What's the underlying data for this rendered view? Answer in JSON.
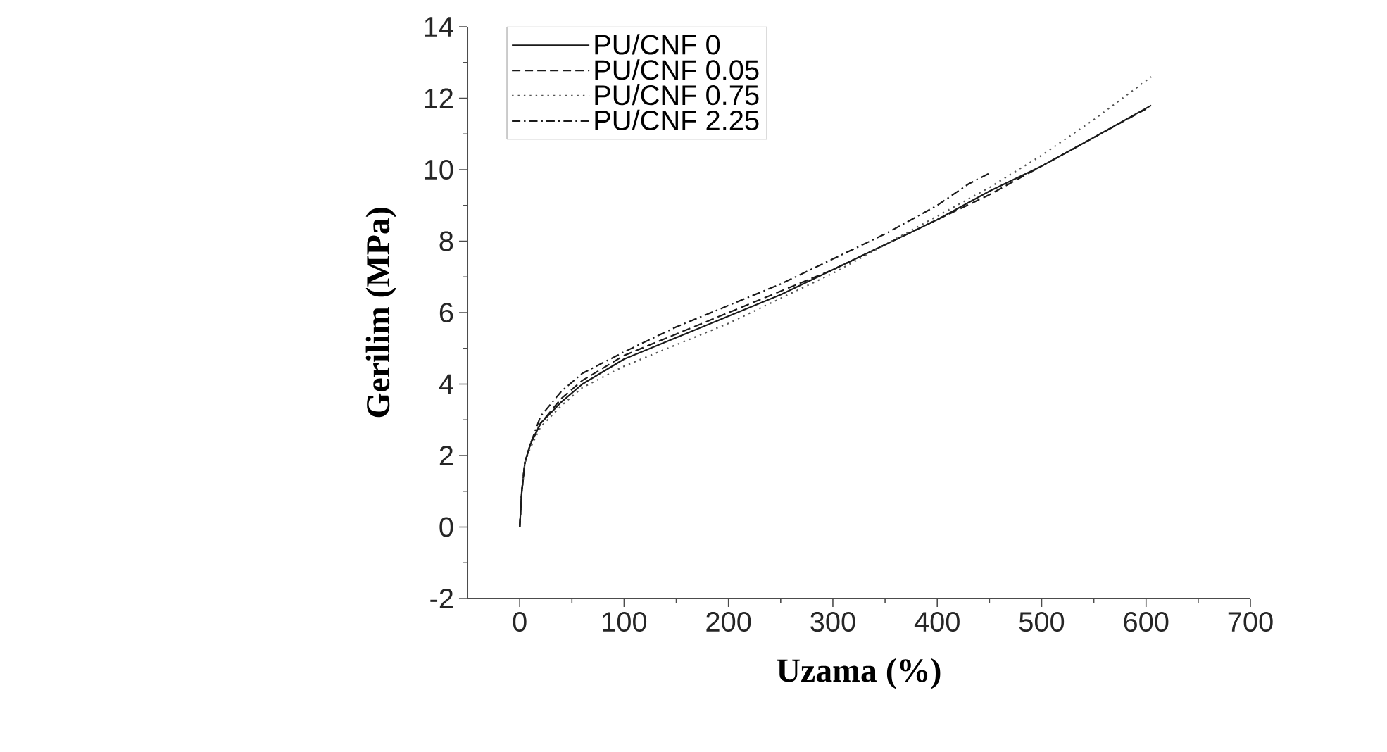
{
  "chart_data": {
    "type": "line",
    "xlabel": "Uzama (%)",
    "ylabel": "Gerilim (MPa)",
    "xlim": [
      -50,
      700
    ],
    "ylim": [
      -2,
      14
    ],
    "xticks": [
      0,
      100,
      200,
      300,
      400,
      500,
      600,
      700
    ],
    "yticks": [
      -2,
      0,
      2,
      4,
      6,
      8,
      10,
      12,
      14
    ],
    "legend": "top left",
    "series": [
      {
        "name": "PU/CNF 0",
        "color": "#1a1a1a",
        "line_style": "solid",
        "x": [
          0,
          2,
          5,
          10,
          20,
          40,
          60,
          100,
          150,
          200,
          250,
          300,
          350,
          400,
          450,
          500,
          550,
          605
        ],
        "values": [
          0,
          1.0,
          1.8,
          2.3,
          2.9,
          3.5,
          4.0,
          4.7,
          5.3,
          5.9,
          6.5,
          7.2,
          7.9,
          8.6,
          9.4,
          10.1,
          10.9,
          11.8
        ]
      },
      {
        "name": "PU/CNF 0.05",
        "color": "#1a1a1a",
        "line_style": "dashed",
        "x": [
          0,
          2,
          5,
          10,
          20,
          40,
          60,
          100,
          150,
          200,
          250,
          300,
          350,
          400,
          450,
          500,
          550,
          600
        ],
        "values": [
          0,
          1.0,
          1.8,
          2.3,
          2.9,
          3.6,
          4.1,
          4.8,
          5.4,
          6.0,
          6.6,
          7.2,
          7.9,
          8.6,
          9.3,
          10.1,
          10.9,
          11.7
        ]
      },
      {
        "name": "PU/CNF 0.75",
        "color": "#555555",
        "line_style": "dotted",
        "x": [
          0,
          2,
          5,
          10,
          20,
          40,
          60,
          100,
          150,
          200,
          250,
          300,
          350,
          400,
          450,
          500,
          550,
          605
        ],
        "values": [
          0,
          1.0,
          1.8,
          2.2,
          2.8,
          3.4,
          3.9,
          4.5,
          5.1,
          5.7,
          6.4,
          7.1,
          7.9,
          8.7,
          9.5,
          10.4,
          11.4,
          12.6
        ]
      },
      {
        "name": "PU/CNF 2.25",
        "color": "#1a1a1a",
        "line_style": "dashdot",
        "x": [
          0,
          2,
          5,
          10,
          20,
          40,
          60,
          100,
          150,
          200,
          250,
          300,
          350,
          400,
          430,
          450
        ],
        "values": [
          0,
          1.0,
          1.8,
          2.3,
          3.1,
          3.8,
          4.3,
          4.9,
          5.6,
          6.2,
          6.8,
          7.5,
          8.2,
          9.0,
          9.6,
          9.9
        ]
      }
    ]
  }
}
